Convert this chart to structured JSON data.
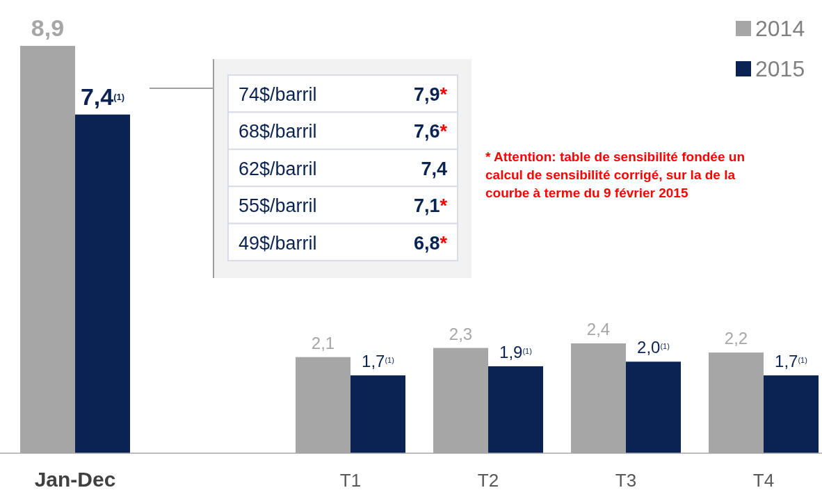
{
  "chart_data": {
    "type": "bar",
    "categories": [
      "Jan-Dec",
      null,
      "T1",
      "T2",
      "T3",
      "T4"
    ],
    "series": [
      {
        "name": "2014",
        "color": "#a6a6a6",
        "values": [
          8.9,
          null,
          2.1,
          2.3,
          2.4,
          2.2
        ],
        "value_labels": [
          "8,9",
          null,
          "2,1",
          "2,3",
          "2,4",
          "2,2"
        ]
      },
      {
        "name": "2015",
        "color": "#0a2352",
        "values": [
          7.4,
          null,
          1.7,
          1.9,
          2.0,
          1.7
        ],
        "value_labels": [
          "7,4$^{(1)}$",
          null,
          "1,7$^{(1)}$",
          "1,9$^{(1)}$",
          "2,0$^{(1)}$",
          "1,7$^{(1)}$"
        ]
      }
    ],
    "legend": "top right",
    "annotations": [
      "74$/barril",
      "7,9*",
      "68$/barril",
      "7,6*",
      "62$/barril",
      "7,4",
      "55$/barril",
      "7,1*",
      "49$/barril",
      "6,8*",
      "* Attention: table de sensibilité fondée un calcul de sensibilité corrigé, sur la de la courbe à terme du 9 février 2015"
    ]
  }
}
